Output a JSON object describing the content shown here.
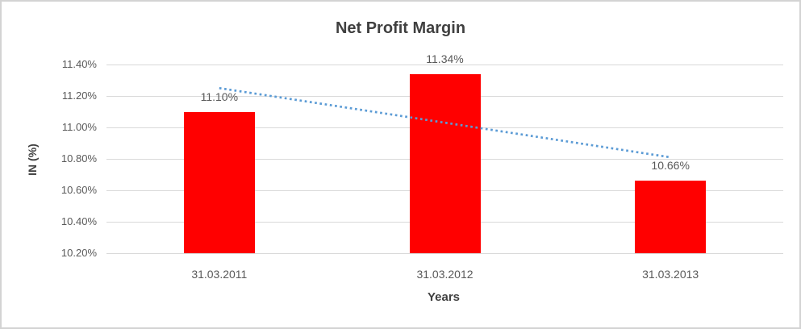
{
  "window": {
    "background": "#FFFFFF",
    "border_color": "#D3D3D3"
  },
  "chart_data": {
    "type": "bar",
    "title": "Net Profit Margin",
    "xlabel": "Years",
    "ylabel": "IN (%)",
    "categories": [
      "31.03.2011",
      "31.03.2012",
      "31.03.2013"
    ],
    "series": [
      {
        "name": "Net Profit Margin",
        "color": "#FF0000",
        "values": [
          11.1,
          11.34,
          10.66
        ],
        "data_labels": [
          "11.10%",
          "11.34%",
          "10.66%"
        ]
      }
    ],
    "y_axis": {
      "min": 10.2,
      "max": 11.4,
      "step": 0.2,
      "tick_labels": [
        "11.40%",
        "11.20%",
        "11.00%",
        "10.80%",
        "10.60%",
        "10.40%",
        "10.20%"
      ]
    },
    "gridlines": {
      "show": true,
      "color": "#D9D9D9"
    },
    "legend_position": "none",
    "trendline": {
      "type": "linear",
      "style": "dotted",
      "color": "#5B9BD5",
      "start_value": 11.25,
      "end_value": 10.81
    },
    "text_colors": {
      "title": "#404040",
      "axis_titles": "#404040",
      "tick_labels": "#595959",
      "data_labels": "#595959"
    }
  }
}
